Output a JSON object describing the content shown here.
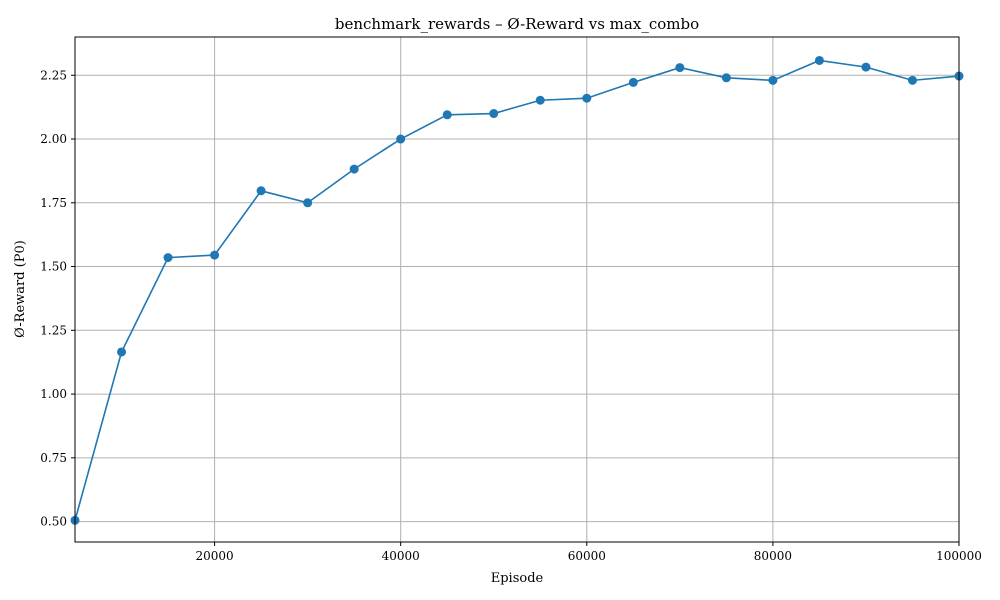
{
  "chart_data": {
    "type": "line",
    "title": "benchmark_rewards – Ø-Reward vs max_combo",
    "xlabel": "Episode",
    "ylabel": "Ø-Reward (P0)",
    "xlim": [
      5000,
      100000
    ],
    "ylim": [
      0.42,
      2.4
    ],
    "x_ticks": [
      20000,
      40000,
      60000,
      80000,
      100000
    ],
    "x_tick_labels": [
      "20000",
      "40000",
      "60000",
      "80000",
      "100000"
    ],
    "y_ticks": [
      0.5,
      0.75,
      1.0,
      1.25,
      1.5,
      1.75,
      2.0,
      2.25
    ],
    "y_tick_labels": [
      "0.50",
      "0.75",
      "1.00",
      "1.25",
      "1.50",
      "1.75",
      "2.00",
      "2.25"
    ],
    "grid": true,
    "series": [
      {
        "color": "#1f77b4",
        "marker": "circle",
        "x": [
          5000,
          10000,
          15000,
          20000,
          25000,
          30000,
          35000,
          40000,
          45000,
          50000,
          55000,
          60000,
          65000,
          70000,
          75000,
          80000,
          85000,
          90000,
          95000,
          100000
        ],
        "values": [
          0.505,
          1.165,
          1.535,
          1.545,
          1.797,
          1.75,
          1.882,
          2.0,
          2.095,
          2.1,
          2.152,
          2.16,
          2.222,
          2.28,
          2.24,
          2.23,
          2.308,
          2.282,
          2.23,
          2.247
        ]
      }
    ]
  }
}
